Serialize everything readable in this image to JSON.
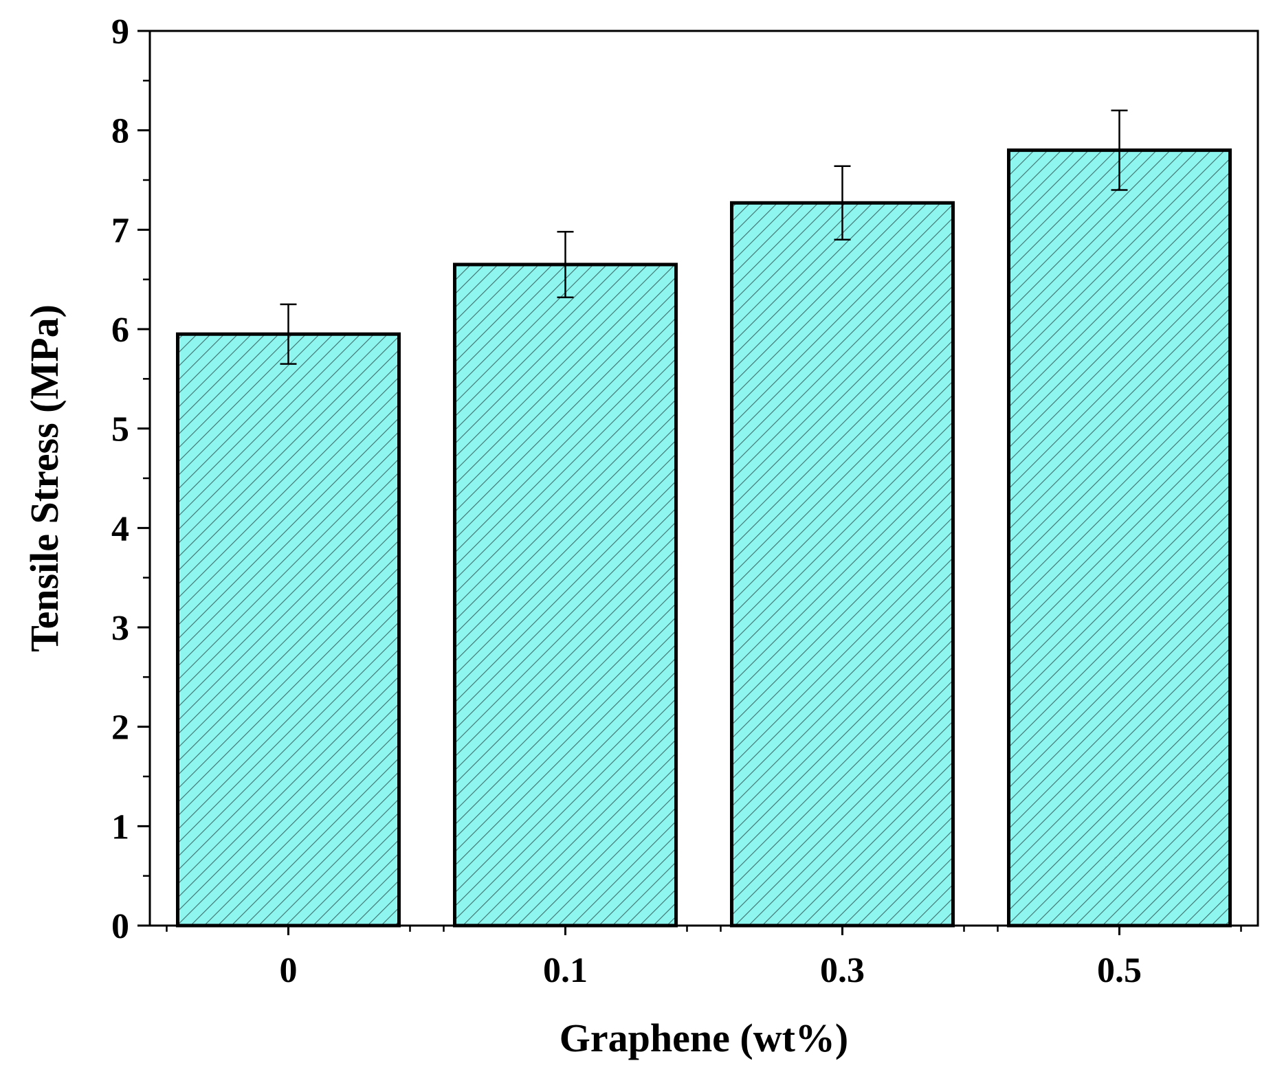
{
  "chart_data": {
    "type": "bar",
    "title": "",
    "xlabel": "Graphene (wt%)",
    "ylabel": "Tensile Stress (MPa)",
    "categories": [
      "0",
      "0.1",
      "0.3",
      "0.5"
    ],
    "values": [
      5.95,
      6.65,
      7.27,
      7.8
    ],
    "error": [
      0.3,
      0.33,
      0.37,
      0.4
    ],
    "ylim": [
      0,
      9
    ],
    "yticks": [
      "0",
      "1",
      "2",
      "3",
      "4",
      "5",
      "6",
      "7",
      "8",
      "9"
    ],
    "grid": false,
    "bar_fill": "#8ef5ef",
    "hatch_color": "#3e6f6c",
    "bar_edge": "#000000"
  }
}
